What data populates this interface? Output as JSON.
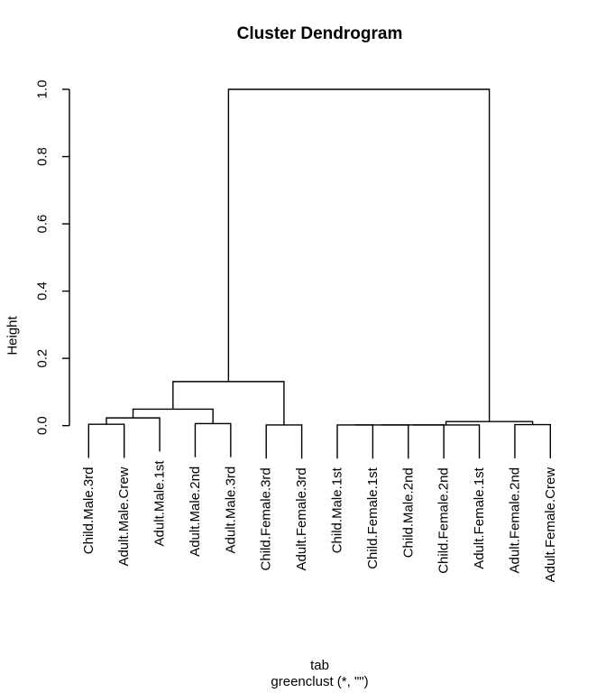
{
  "chart_data": {
    "type": "dendrogram",
    "title": "Cluster Dendrogram",
    "ylabel": "Height",
    "xlabel_lines": [
      "tab",
      "greenclust (*, \"\")"
    ],
    "ylim": [
      0,
      1
    ],
    "yticks": [
      0.0,
      0.2,
      0.4,
      0.6,
      0.8,
      1.0
    ],
    "grid": false,
    "hang": 0.1,
    "line_color": "#000000",
    "text_color": "#000000",
    "background": "#ffffff",
    "leaves": [
      "Child.Male.3rd",
      "Adult.Male.Crew",
      "Adult.Male.1st",
      "Adult.Male.2nd",
      "Adult.Male.3rd",
      "Child.Female.3rd",
      "Adult.Female.3rd",
      "Child.Male.1st",
      "Child.Female.1st",
      "Child.Male.2nd",
      "Child.Female.2nd",
      "Adult.Female.1st",
      "Adult.Female.2nd",
      "Adult.Female.Crew"
    ],
    "merges": [
      {
        "id": "n1",
        "left": "L0",
        "right": "L1",
        "height": 0.004
      },
      {
        "id": "n2",
        "left": "n1",
        "right": "L2",
        "height": 0.023
      },
      {
        "id": "n3",
        "left": "L3",
        "right": "L4",
        "height": 0.006
      },
      {
        "id": "n4",
        "left": "n2",
        "right": "n3",
        "height": 0.049
      },
      {
        "id": "n5",
        "left": "L5",
        "right": "L6",
        "height": 0.002
      },
      {
        "id": "n6",
        "left": "n4",
        "right": "n5",
        "height": 0.131
      },
      {
        "id": "n7",
        "left": "L7",
        "right": "L8",
        "height": 0.002
      },
      {
        "id": "n8",
        "left": "n7",
        "right": "L9",
        "height": 0.002
      },
      {
        "id": "n9",
        "left": "n8",
        "right": "L10",
        "height": 0.002
      },
      {
        "id": "n10",
        "left": "n9",
        "right": "L11",
        "height": 0.002
      },
      {
        "id": "n11",
        "left": "L12",
        "right": "L13",
        "height": 0.003
      },
      {
        "id": "n12",
        "left": "n10",
        "right": "n11",
        "height": 0.012
      },
      {
        "id": "n13",
        "left": "n6",
        "right": "n12",
        "height": 1.0
      }
    ]
  }
}
